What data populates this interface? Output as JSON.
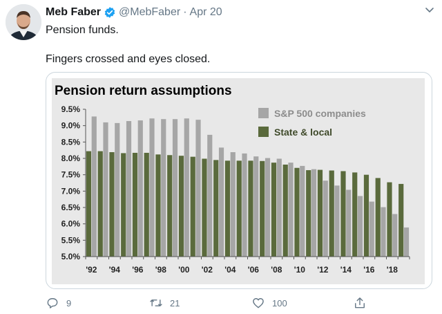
{
  "tweet": {
    "author_name": "Meb Faber",
    "handle": "@MebFaber",
    "separator": "·",
    "date": "Apr 20",
    "text_line1": "Pension funds.",
    "text_line2": "Fingers crossed and eyes closed.",
    "verified_color": "#1da1f2",
    "icons": {
      "more": "chevron-down-icon",
      "reply": "reply-icon",
      "retweet": "retweet-icon",
      "like": "heart-icon",
      "share": "share-icon"
    }
  },
  "actions": {
    "reply_count": "9",
    "retweet_count": "21",
    "like_count": "100"
  },
  "chart_data": {
    "type": "bar",
    "title": "Pension return assumptions",
    "xlabel": "",
    "ylabel": "",
    "ylim": [
      5.0,
      9.5
    ],
    "y_ticks": [
      "5.0%",
      "5.5%",
      "6.0%",
      "6.5%",
      "7.0%",
      "7.5%",
      "8.0%",
      "8.5%",
      "9.0%",
      "9.5%"
    ],
    "x_tick_labels": [
      "'92",
      "'94",
      "'96",
      "'98",
      "'00",
      "'02",
      "'04",
      "'06",
      "'08",
      "'10",
      "'12",
      "'14",
      "'16",
      "'18"
    ],
    "categories": [
      "1992",
      "1993",
      "1994",
      "1995",
      "1996",
      "1997",
      "1998",
      "1999",
      "2000",
      "2001",
      "2002",
      "2003",
      "2004",
      "2005",
      "2006",
      "2007",
      "2008",
      "2009",
      "2010",
      "2011",
      "2012",
      "2013",
      "2014",
      "2015",
      "2016",
      "2017",
      "2018",
      "2019"
    ],
    "legend_position": "top-right",
    "background": "#e8e8e8",
    "series": [
      {
        "name": "S&P 500 companies",
        "color": "#a6a6a6",
        "values": [
          9.28,
          9.1,
          9.08,
          9.14,
          9.16,
          9.22,
          9.2,
          9.2,
          9.22,
          9.18,
          8.72,
          8.33,
          8.19,
          8.15,
          8.06,
          8.01,
          7.99,
          7.87,
          7.77,
          7.67,
          7.32,
          7.17,
          7.04,
          6.85,
          6.68,
          6.51,
          6.3,
          5.89
        ]
      },
      {
        "name": "State & local",
        "color": "#5a6a3c",
        "values": [
          8.22,
          8.22,
          8.19,
          8.16,
          8.17,
          8.17,
          8.12,
          8.1,
          8.08,
          8.05,
          7.99,
          7.95,
          7.93,
          7.93,
          7.93,
          7.92,
          7.87,
          7.81,
          7.71,
          7.64,
          7.65,
          7.63,
          7.61,
          7.57,
          7.5,
          7.4,
          7.27,
          7.22
        ]
      }
    ]
  }
}
